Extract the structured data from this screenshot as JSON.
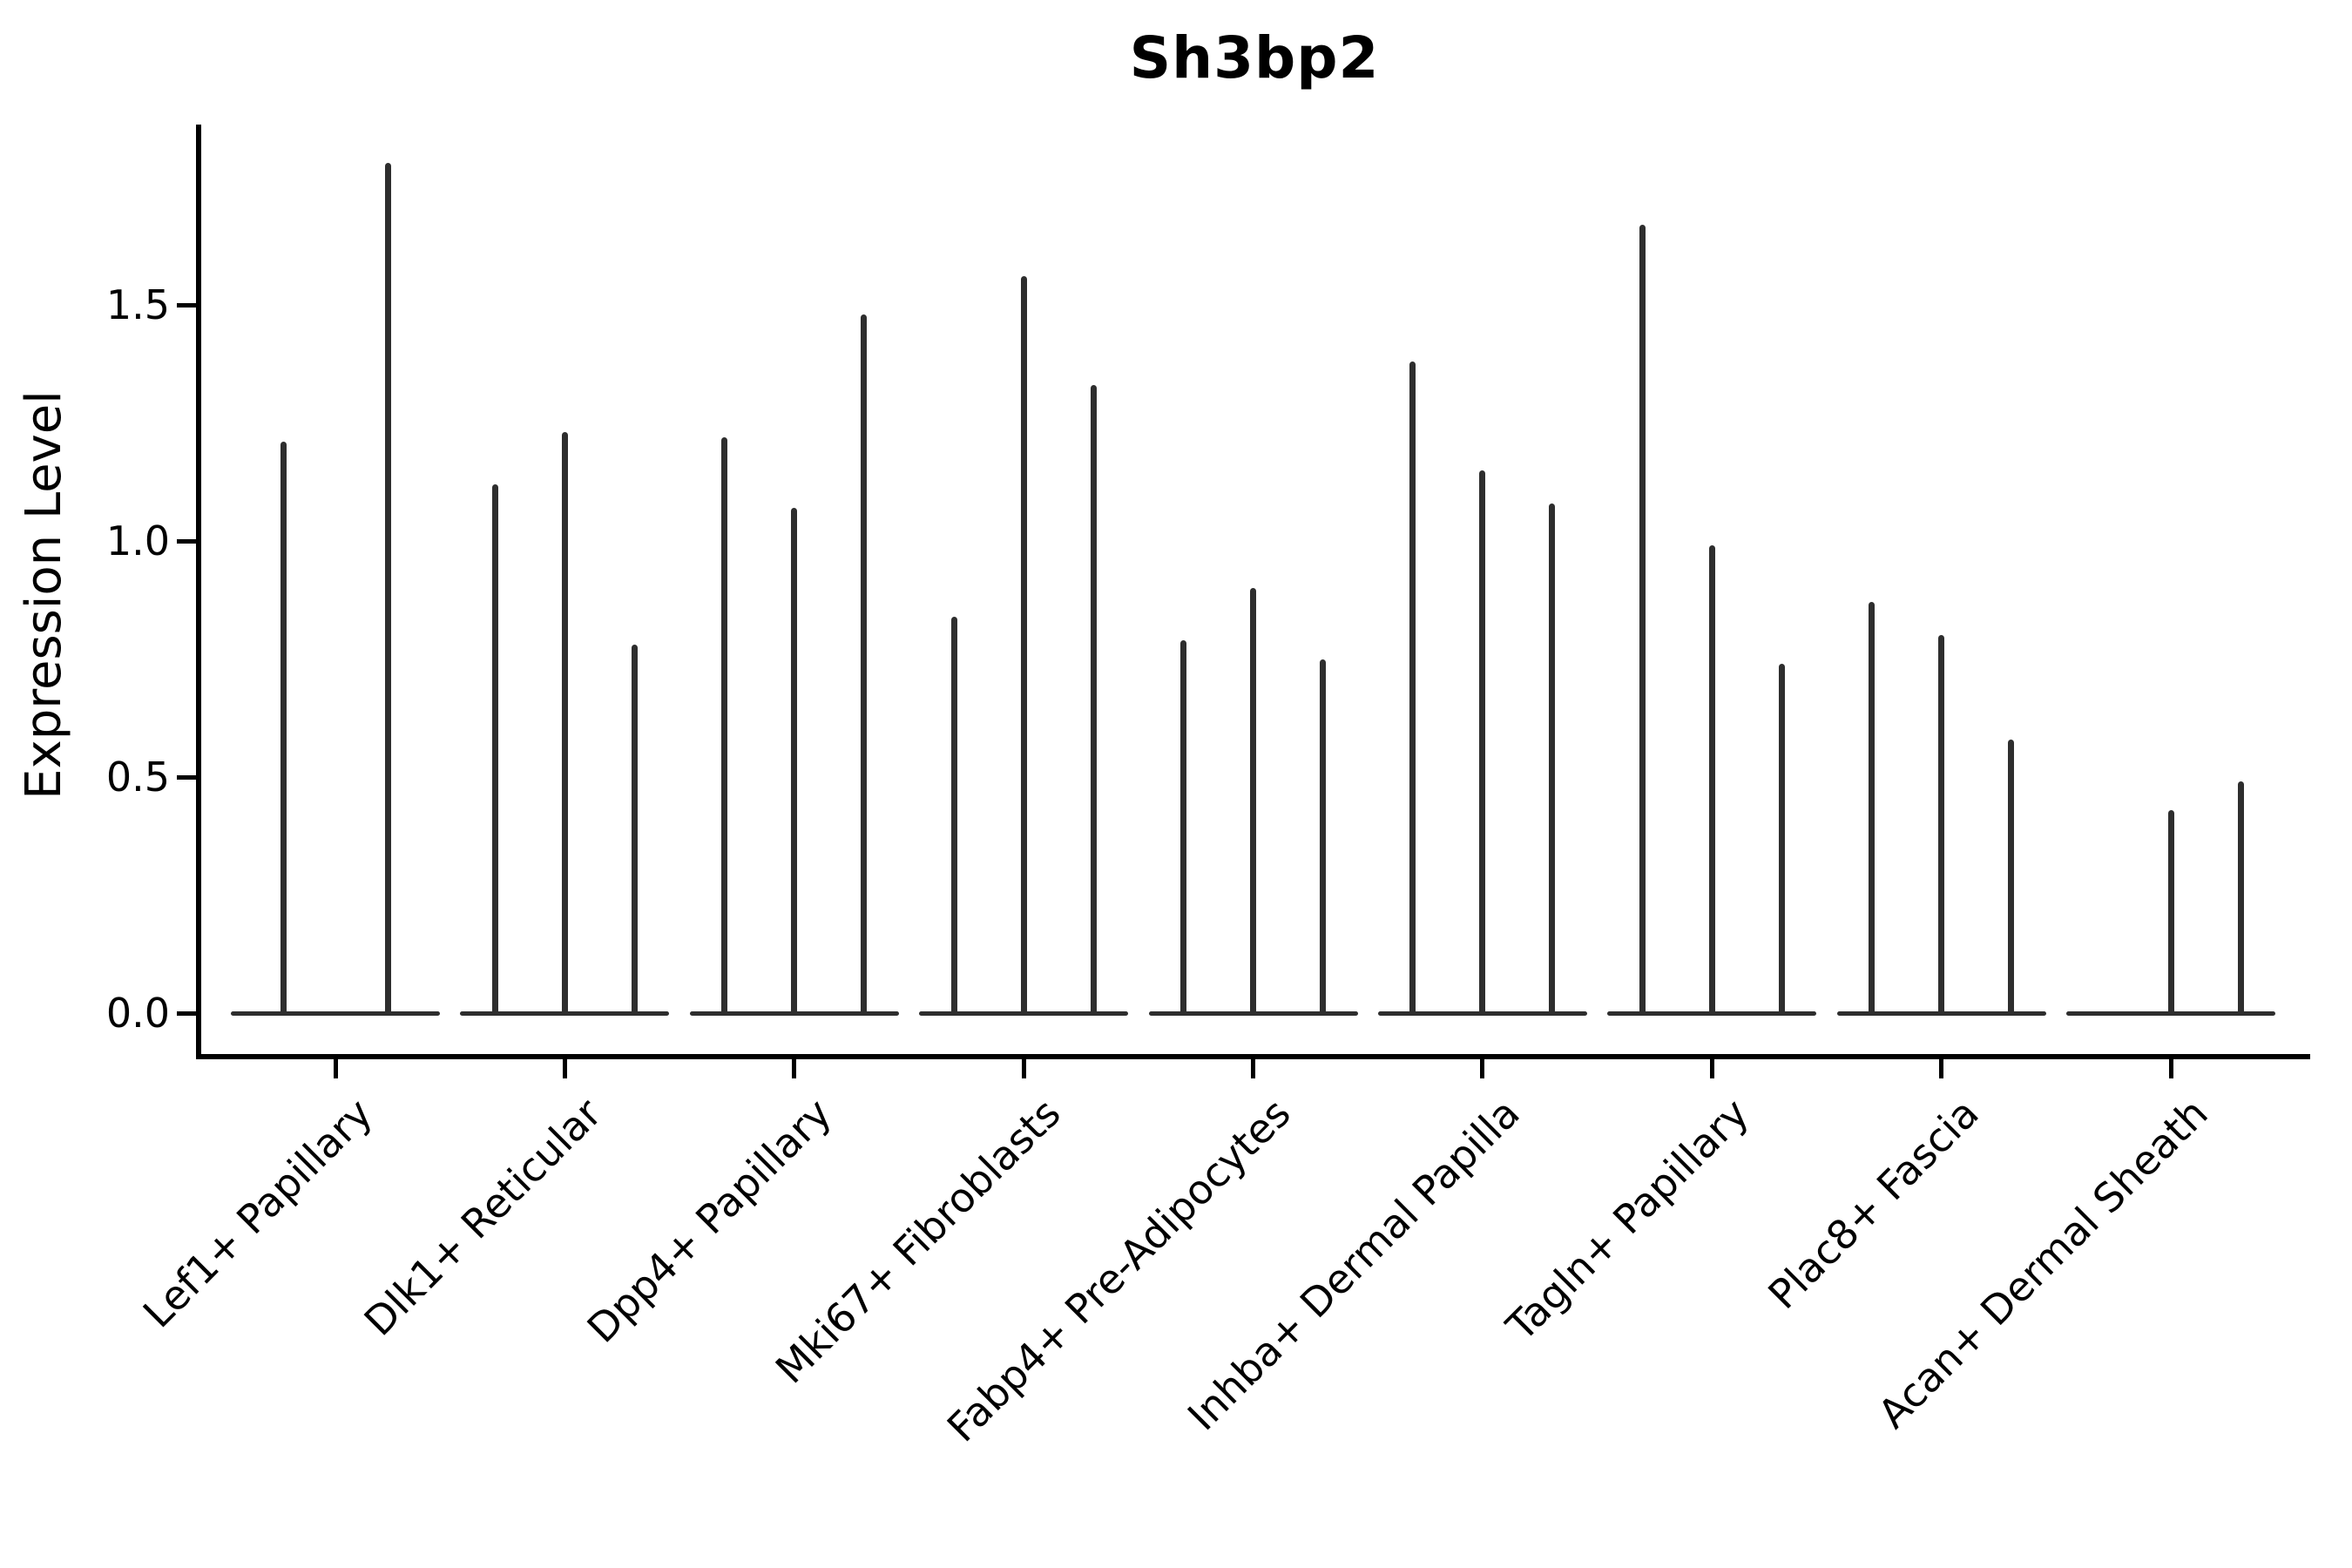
{
  "title": "Sh3bp2",
  "y_axis": {
    "label": "Expression Level",
    "tick_labels": [
      "0.0",
      "0.5",
      "1.0",
      "1.5"
    ],
    "tick_values": [
      0.0,
      0.5,
      1.0,
      1.5
    ]
  },
  "colors": {
    "violin": "#2e2e2e",
    "axis": "#000000",
    "background": "#ffffff"
  },
  "chart_data": {
    "type": "violin",
    "title": "Sh3bp2",
    "xlabel": "",
    "ylabel": "Expression Level",
    "grid": false,
    "legend": "none",
    "ylim": [
      -0.09,
      1.88
    ],
    "yticks": [
      0.0,
      0.5,
      1.0,
      1.5
    ],
    "description": "Stacked-style violin plot of Sh3bp2 expression; each cell-type category contains 2-3 very thin violins (spikes) rising from a flat base at 0. Values are the maximum expression level reached by each spike.",
    "categories": [
      "Lef1+ Papillary",
      "Dlk1+ Reticular",
      "Dpp4+ Papillary",
      "Mki67+ Fibroblasts",
      "Fabp4+ Pre-Adipocytes",
      "Inhba+ Dermal Papilla",
      "Tagln+ Papillary",
      "Plac8+ Fascia",
      "Acan+ Dermal Sheath"
    ],
    "series": [
      {
        "category": "Lef1+ Papillary",
        "spike_maxima": [
          1.21,
          1.8
        ]
      },
      {
        "category": "Dlk1+ Reticular",
        "spike_maxima": [
          1.12,
          1.23,
          0.78
        ]
      },
      {
        "category": "Dpp4+ Papillary",
        "spike_maxima": [
          1.22,
          1.07,
          1.48
        ]
      },
      {
        "category": "Mki67+ Fibroblasts",
        "spike_maxima": [
          0.84,
          1.56,
          1.33
        ]
      },
      {
        "category": "Fabp4+ Pre-Adipocytes",
        "spike_maxima": [
          0.79,
          0.9,
          0.75
        ]
      },
      {
        "category": "Inhba+ Dermal Papilla",
        "spike_maxima": [
          1.38,
          1.15,
          1.08
        ]
      },
      {
        "category": "Tagln+ Papillary",
        "spike_maxima": [
          1.67,
          0.99,
          0.74
        ]
      },
      {
        "category": "Plac8+ Fascia",
        "spike_maxima": [
          0.87,
          0.8,
          0.58
        ]
      },
      {
        "category": "Acan+ Dermal Sheath",
        "spike_maxima": [
          0.0,
          0.43,
          0.49
        ]
      }
    ]
  }
}
